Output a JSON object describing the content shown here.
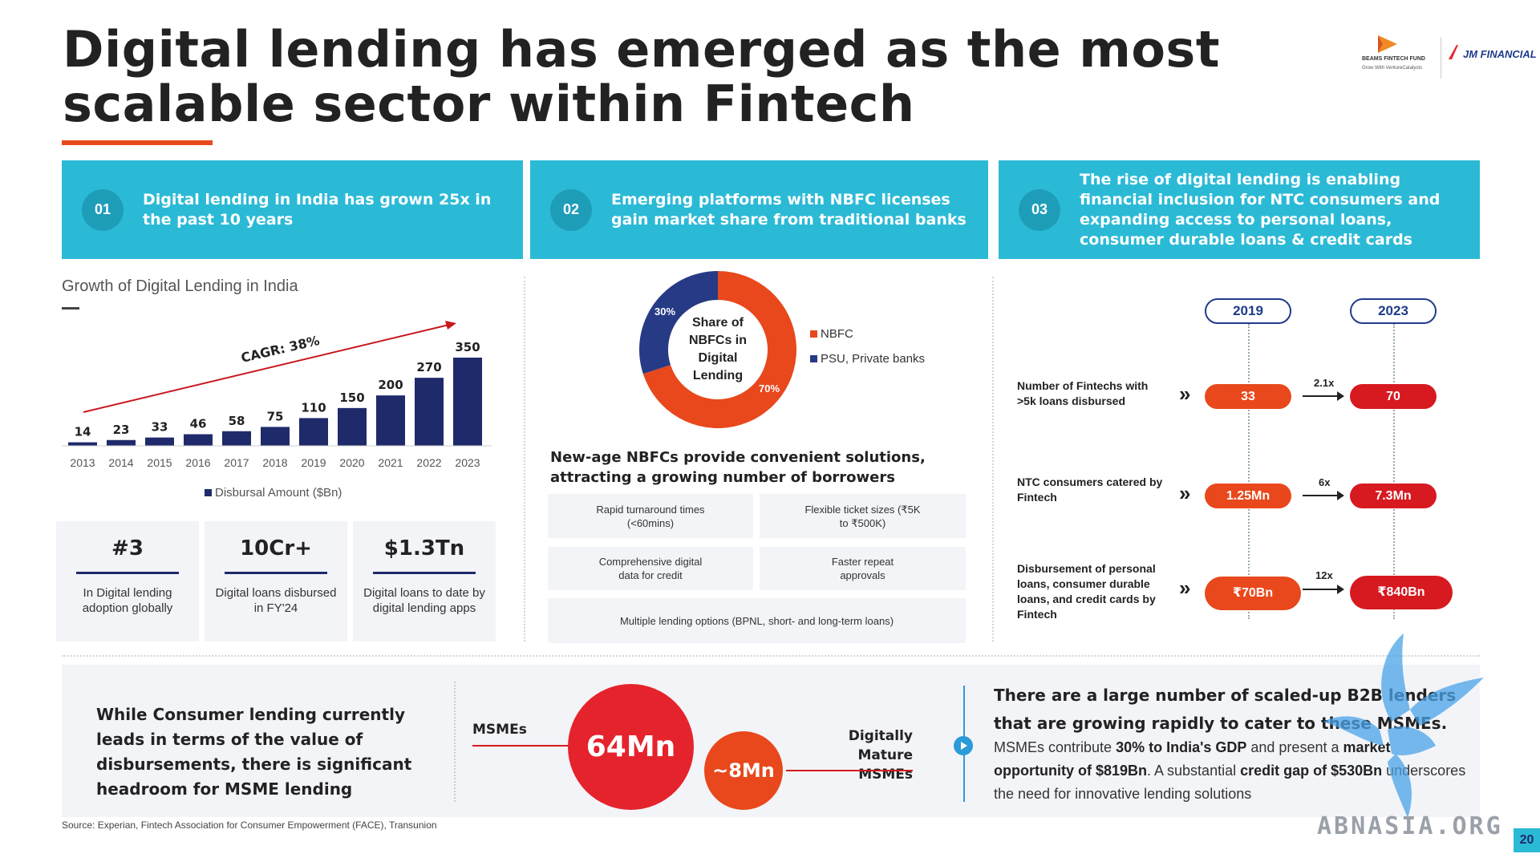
{
  "title": "Digital lending has emerged as the most scalable sector within Fintech",
  "logos": {
    "beams": "BEAMS FINTECH FUND",
    "beams_sub": "Grow With  VentureCatalysts",
    "jm": "JM FINANCIAL"
  },
  "headers": [
    {
      "num": "01",
      "text": "Digital lending in India has grown 25x in the past 10 years"
    },
    {
      "num": "02",
      "text": "Emerging platforms with NBFC licenses gain market share from traditional banks"
    },
    {
      "num": "03",
      "text": "The rise of digital lending is enabling financial inclusion for NTC consumers and expanding access to personal loans, consumer durable loans & credit cards"
    }
  ],
  "growth": {
    "title": "Growth of Digital Lending in India",
    "cagr": "CAGR: 38%",
    "legend": "Disbursal Amount ($Bn)"
  },
  "chart_data": [
    {
      "type": "bar",
      "title": "Growth of Digital Lending in India",
      "categories": [
        "2013",
        "2014",
        "2015",
        "2016",
        "2017",
        "2018",
        "2019",
        "2020",
        "2021",
        "2022",
        "2023"
      ],
      "series": [
        {
          "name": "Disbursal Amount ($Bn)",
          "values": [
            14,
            23,
            33,
            46,
            58,
            75,
            110,
            150,
            200,
            270,
            350
          ]
        }
      ],
      "annotation": "CAGR: 38%",
      "color": "#1f2a6b"
    },
    {
      "type": "pie",
      "title": "Share of NBFCs in Digital Lending",
      "categories": [
        "NBFC",
        "PSU, Private banks"
      ],
      "values": [
        70,
        30
      ],
      "labels": [
        "70%",
        "30%"
      ],
      "colors": [
        "#e8481c",
        "#273a85"
      ]
    }
  ],
  "stats": [
    {
      "big": "#3",
      "small": "In Digital lending adoption globally"
    },
    {
      "big": "10Cr+",
      "small": "Digital loans disbursed in FY'24"
    },
    {
      "big": "$1.3Tn",
      "small": "Digital loans to date by digital lending apps"
    }
  ],
  "donut": {
    "center": "Share of NBFCs in Digital Lending",
    "pct30": "30%",
    "pct70": "70%",
    "legend": [
      "NBFC",
      "PSU, Private banks"
    ]
  },
  "section2": {
    "heading": "New-age NBFCs provide convenient solutions, attracting a growing number of borrowers",
    "features": [
      "Rapid turnaround times (<60mins)",
      "Flexible ticket sizes (₹5K to ₹500K)",
      "Comprehensive digital data for credit",
      "Faster repeat approvals",
      "Multiple lending options (BPNL, short- and long-term loans)"
    ]
  },
  "section3": {
    "years": [
      "2019",
      "2023"
    ],
    "rows": [
      {
        "label": "Number of Fintechs with >5k loans disbursed",
        "v2019": "33",
        "mult": "2.1x",
        "v2023": "70"
      },
      {
        "label": "NTC consumers catered by Fintech",
        "v2019": "1.25Mn",
        "mult": "6x",
        "v2023": "7.3Mn"
      },
      {
        "label": "Disbursement of personal loans, consumer durable loans, and credit cards by Fintech",
        "v2019": "₹70Bn",
        "mult": "12x",
        "v2023": "₹840Bn"
      }
    ]
  },
  "bottom": {
    "left": "While Consumer lending currently leads in terms of the value of disbursements, there is significant headroom for MSME lending",
    "msme_label": "MSMEs",
    "msme_value": "64Mn",
    "digital_value": "~8Mn",
    "digital_label": "Digitally Mature MSMEs",
    "right_head": "There are a large number of scaled-up B2B lenders that are growing rapidly to cater to these MSMEs.",
    "right_body_1": "MSMEs contribute ",
    "right_body_b1": "30% to India's GDP",
    "right_body_2": " and present a ",
    "right_body_b2": "market opportunity of $819Bn",
    "right_body_3": ". A substantial ",
    "right_body_b3": "credit gap of $530Bn",
    "right_body_4": " underscores the need for innovative lending solutions"
  },
  "source": "Source: Experian, Fintech Association for Consumer Empowerment (FACE), Transunion",
  "watermark": "ABNASIA.ORG",
  "page_number": "20"
}
